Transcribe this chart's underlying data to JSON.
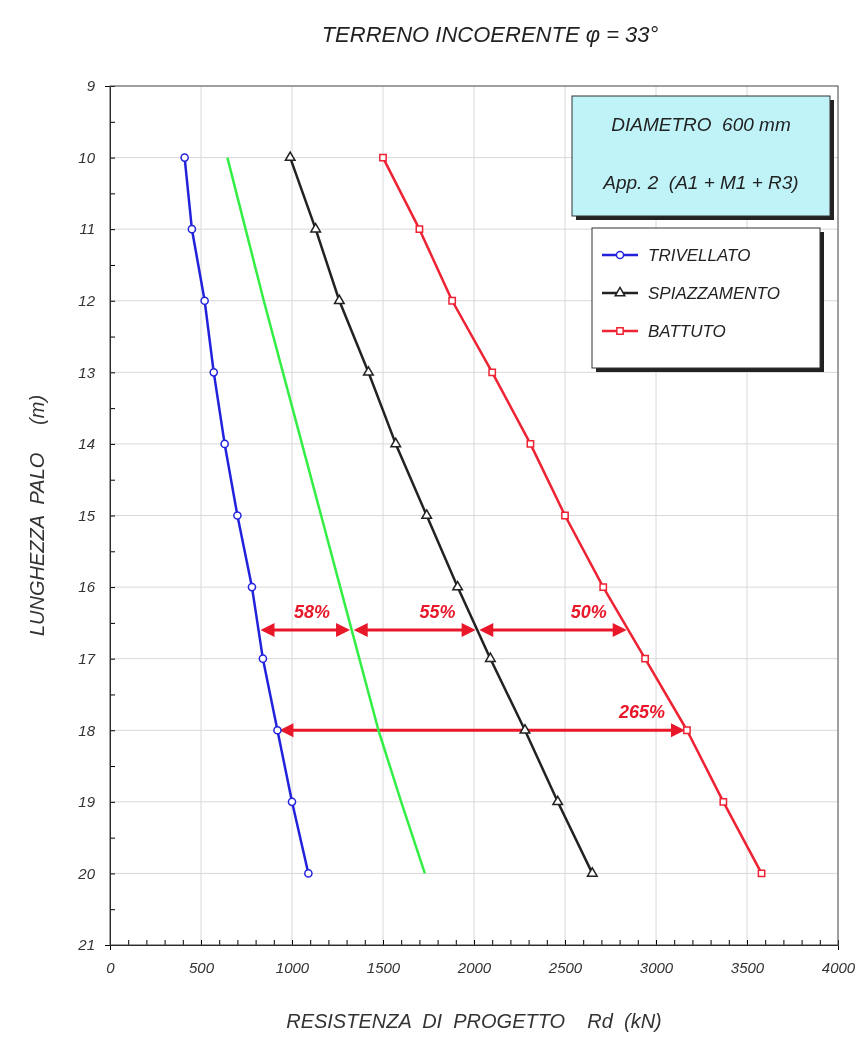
{
  "chart_data": {
    "type": "line",
    "title": "TERRENO INCOERENTE   φ = 33°",
    "xlabel": "RESISTENZA  DI  PROGETTO    Rd  (kN)",
    "ylabel": "LUNGHEZZA  PALO     (m)",
    "series": [
      {
        "name": "TRIVELLATO",
        "color": "#2222dd",
        "marker": "circle",
        "x": [
          410,
          450,
          520,
          570,
          630,
          700,
          780,
          840,
          920,
          1000,
          1090
        ],
        "values": [
          10,
          11,
          12,
          13,
          14,
          15,
          16,
          17,
          18,
          19,
          20
        ]
      },
      {
        "color": "#33ee44",
        "marker": "none",
        "x": [
          645,
          745,
          845,
          950,
          1055,
          1160,
          1265,
          1370,
          1475,
          1600,
          1730
        ],
        "values": [
          10,
          11,
          12,
          13,
          14,
          15,
          16,
          17,
          18,
          19,
          20
        ]
      },
      {
        "name": "SPIAZZAMENTO",
        "color": "#222222",
        "marker": "triangle",
        "x": [
          990,
          1130,
          1260,
          1420,
          1570,
          1740,
          1910,
          2090,
          2280,
          2460,
          2650
        ],
        "values": [
          10,
          11,
          12,
          13,
          14,
          15,
          16,
          17,
          18,
          19,
          20
        ]
      },
      {
        "name": "BATTUTO",
        "color": "#ee2233",
        "marker": "square",
        "x": [
          1500,
          1700,
          1880,
          2100,
          2310,
          2500,
          2710,
          2940,
          3170,
          3370,
          3580
        ],
        "values": [
          10,
          11,
          12,
          13,
          14,
          15,
          16,
          17,
          18,
          19,
          20
        ]
      }
    ],
    "xlim": [
      0,
      4000
    ],
    "xticks": [
      0,
      {
        "value": 100,
        "label": null
      },
      {
        "value": 200,
        "label": null
      },
      {
        "value": 300,
        "label": null
      },
      {
        "value": 400,
        "label": null
      },
      500,
      {
        "value": 600,
        "label": null
      },
      {
        "value": 700,
        "label": null
      },
      {
        "value": 800,
        "label": null
      },
      {
        "value": 900,
        "label": null
      },
      1000,
      {
        "value": 1100,
        "label": null
      },
      {
        "value": 1200,
        "label": null
      },
      {
        "value": 1300,
        "label": null
      },
      {
        "value": 1400,
        "label": null
      },
      1500,
      {
        "value": 1600,
        "label": null
      },
      {
        "value": 1700,
        "label": null
      },
      {
        "value": 1800,
        "label": null
      },
      {
        "value": 1900,
        "label": null
      },
      2000,
      {
        "value": 2100,
        "label": null
      },
      {
        "value": 2200,
        "label": null
      },
      {
        "value": 2300,
        "label": null
      },
      {
        "value": 2400,
        "label": null
      },
      2500,
      {
        "value": 2600,
        "label": null
      },
      {
        "value": 2700,
        "label": null
      },
      {
        "value": 2800,
        "label": null
      },
      {
        "value": 2900,
        "label": null
      },
      3000,
      {
        "value": 3100,
        "label": null
      },
      {
        "value": 3200,
        "label": null
      },
      {
        "value": 3300,
        "label": null
      },
      {
        "value": 3400,
        "label": null
      },
      3500,
      {
        "value": 3600,
        "label": null
      },
      {
        "value": 3700,
        "label": null
      },
      {
        "value": 3800,
        "label": null
      },
      {
        "value": 3900,
        "label": null
      },
      4000
    ],
    "ylim": [
      21,
      9
    ],
    "yticks": [
      9,
      {
        "value": 9.5,
        "label": null
      },
      10,
      {
        "value": 10.5,
        "label": null
      },
      11,
      {
        "value": 11.5,
        "label": null
      },
      12,
      {
        "value": 12.5,
        "label": null
      },
      13,
      {
        "value": 13.5,
        "label": null
      },
      14,
      {
        "value": 14.5,
        "label": null
      },
      15,
      {
        "value": 15.5,
        "label": null
      },
      16,
      {
        "value": 16.5,
        "label": null
      },
      17,
      {
        "value": 17.5,
        "label": null
      },
      18,
      {
        "value": 18.5,
        "label": null
      },
      19,
      {
        "value": 19.5,
        "label": null
      },
      20,
      {
        "value": 20.5,
        "label": null
      },
      21
    ],
    "grid": true,
    "legend": "top right",
    "line_style": "solid",
    "annotations": [
      "DIAMETRO  600 mm",
      "App. 2  (A1 + M1 + R3)",
      {
        "text": "58%",
        "x": 1330,
        "y": 16.6
      },
      {
        "text": "55%",
        "x": 2020,
        "y": 16.6
      },
      {
        "text": "50%",
        "x": 2850,
        "y": 16.6
      },
      {
        "text": "265%",
        "x": 3170,
        "y": 18
      }
    ]
  }
}
